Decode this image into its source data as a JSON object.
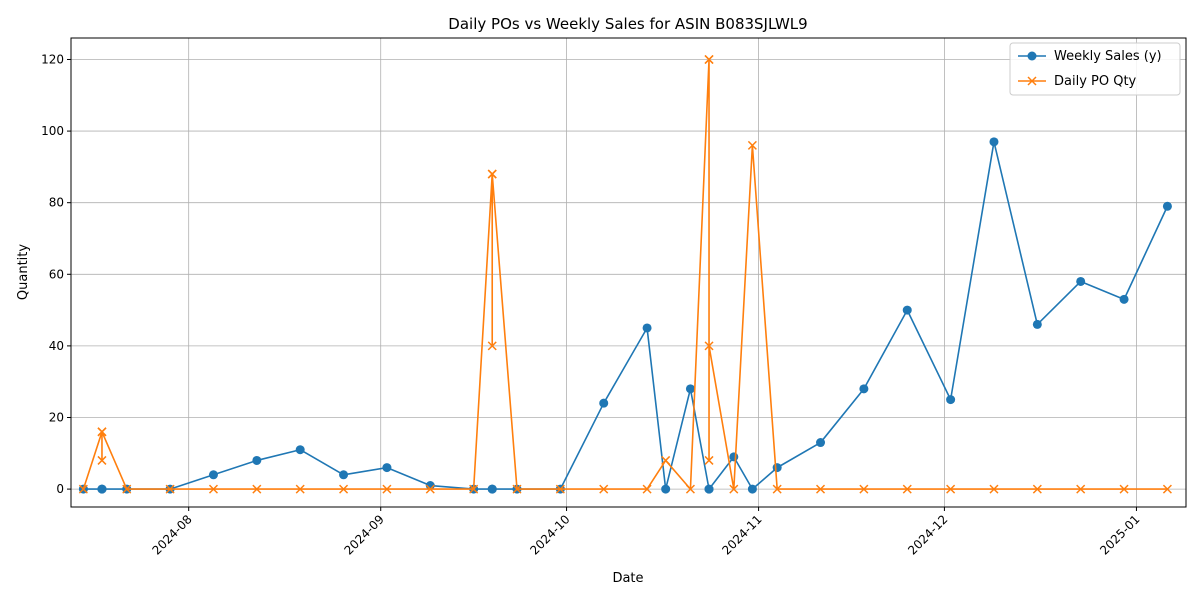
{
  "chart_data": {
    "type": "line",
    "title": "Daily POs vs Weekly Sales for ASIN B083SJLWL9",
    "xlabel": "Date",
    "ylabel": "Quantity",
    "ylim": [
      -5,
      126
    ],
    "xlim": [
      "2024-07-13",
      "2025-01-09"
    ],
    "yticks": [
      0,
      20,
      40,
      60,
      80,
      100,
      120
    ],
    "xticks": [
      "2024-08-01",
      "2024-09-01",
      "2024-10-01",
      "2024-11-01",
      "2024-12-01",
      "2025-01-01"
    ],
    "xtick_labels": [
      "2024-08",
      "2024-09",
      "2024-10",
      "2024-11",
      "2024-12",
      "2025-01"
    ],
    "grid": true,
    "legend": "top-right",
    "series": [
      {
        "name": "Weekly Sales (y)",
        "color": "#1f77b4",
        "marker": "circle",
        "x": [
          "2024-07-15",
          "2024-07-18",
          "2024-07-18",
          "2024-07-22",
          "2024-07-29",
          "2024-08-05",
          "2024-08-12",
          "2024-08-19",
          "2024-08-26",
          "2024-09-02",
          "2024-09-09",
          "2024-09-16",
          "2024-09-19",
          "2024-09-19",
          "2024-09-23",
          "2024-09-30",
          "2024-10-07",
          "2024-10-14",
          "2024-10-17",
          "2024-10-21",
          "2024-10-24",
          "2024-10-24",
          "2024-10-28",
          "2024-10-31",
          "2024-11-04",
          "2024-11-11",
          "2024-11-18",
          "2024-11-25",
          "2024-12-02",
          "2024-12-09",
          "2024-12-16",
          "2024-12-23",
          "2024-12-30",
          "2025-01-06"
        ],
        "values": [
          0,
          0,
          0,
          0,
          0,
          4,
          8,
          11,
          4,
          6,
          1,
          0,
          0,
          0,
          0,
          0,
          24,
          45,
          0,
          28,
          0,
          0,
          9,
          0,
          6,
          13,
          28,
          50,
          25,
          97,
          46,
          58,
          53,
          79
        ]
      },
      {
        "name": "Daily PO Qty",
        "color": "#ff7f0e",
        "marker": "x",
        "x": [
          "2024-07-15",
          "2024-07-18",
          "2024-07-18",
          "2024-07-18",
          "2024-07-22",
          "2024-07-29",
          "2024-08-05",
          "2024-08-12",
          "2024-08-19",
          "2024-08-26",
          "2024-09-02",
          "2024-09-09",
          "2024-09-16",
          "2024-09-19",
          "2024-09-19",
          "2024-09-19",
          "2024-09-23",
          "2024-09-30",
          "2024-10-07",
          "2024-10-14",
          "2024-10-17",
          "2024-10-21",
          "2024-10-24",
          "2024-10-24",
          "2024-10-24",
          "2024-10-24",
          "2024-10-28",
          "2024-10-31",
          "2024-11-04",
          "2024-11-11",
          "2024-11-18",
          "2024-11-25",
          "2024-12-02",
          "2024-12-09",
          "2024-12-16",
          "2024-12-23",
          "2024-12-30",
          "2025-01-06"
        ],
        "values": [
          0,
          16,
          8,
          16,
          0,
          0,
          0,
          0,
          0,
          0,
          0,
          0,
          0,
          88,
          40,
          88,
          0,
          0,
          0,
          0,
          8,
          0,
          120,
          8,
          120,
          40,
          0,
          96,
          0,
          0,
          0,
          0,
          0,
          0,
          0,
          0,
          0,
          0
        ]
      }
    ]
  }
}
